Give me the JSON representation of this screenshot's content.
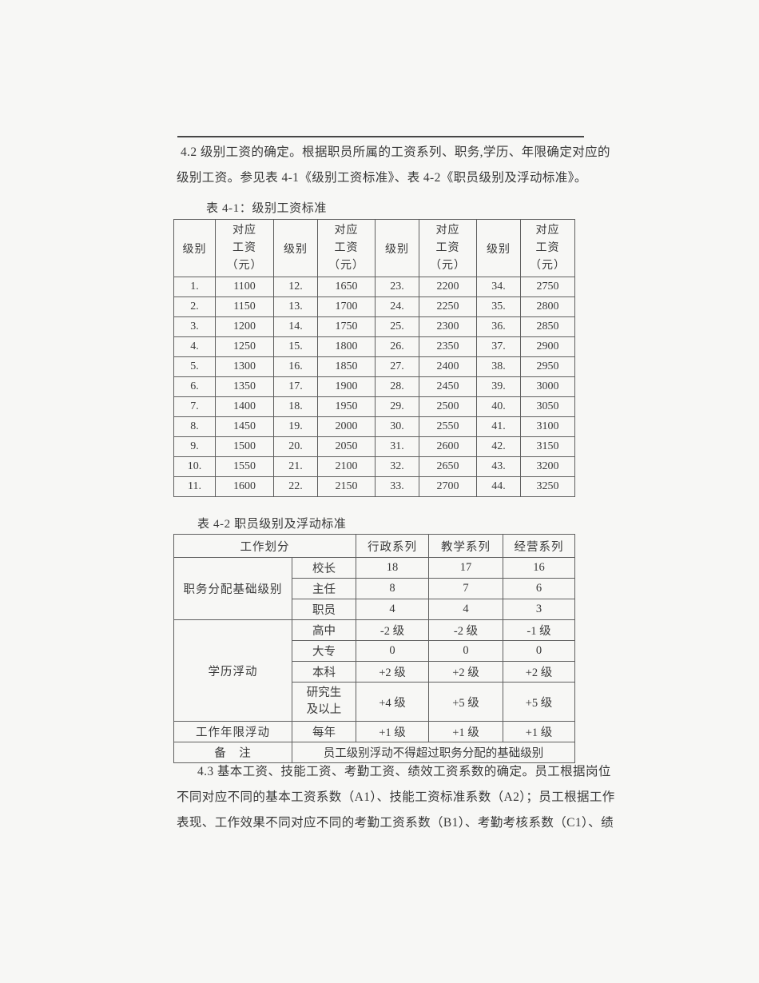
{
  "page": {
    "background_color": "#f7f7f5",
    "text_color": "#383838",
    "table_border_color": "#5f5f5f",
    "rule_color": "#474747"
  },
  "p42": {
    "lines": [
      "4.2 级别工资的确定。根据职员所属的工资系列、职务,学历、年限确定对应的",
      "级别工资。参见表 4-1《级别工资标准》、表 4-2《职员级别及浮动标准》。"
    ]
  },
  "table1": {
    "caption": "表 4-1：级别工资标准",
    "headers": {
      "grade": "级别",
      "salary": "对应\n工资\n（元）"
    },
    "rows": [
      [
        "1.",
        "1100",
        "12.",
        "1650",
        "23.",
        "2200",
        "34.",
        "2750"
      ],
      [
        "2.",
        "1150",
        "13.",
        "1700",
        "24.",
        "2250",
        "35.",
        "2800"
      ],
      [
        "3.",
        "1200",
        "14.",
        "1750",
        "25.",
        "2300",
        "36.",
        "2850"
      ],
      [
        "4.",
        "1250",
        "15.",
        "1800",
        "26.",
        "2350",
        "37.",
        "2900"
      ],
      [
        "5.",
        "1300",
        "16.",
        "1850",
        "27.",
        "2400",
        "38.",
        "2950"
      ],
      [
        "6.",
        "1350",
        "17.",
        "1900",
        "28.",
        "2450",
        "39.",
        "3000"
      ],
      [
        "7.",
        "1400",
        "18.",
        "1950",
        "29.",
        "2500",
        "40.",
        "3050"
      ],
      [
        "8.",
        "1450",
        "19.",
        "2000",
        "30.",
        "2550",
        "41.",
        "3100"
      ],
      [
        "9.",
        "1500",
        "20.",
        "2050",
        "31.",
        "2600",
        "42.",
        "3150"
      ],
      [
        "10.",
        "1550",
        "21.",
        "2100",
        "32.",
        "2650",
        "43.",
        "3200"
      ],
      [
        "11.",
        "1600",
        "22.",
        "2150",
        "33.",
        "2700",
        "44.",
        "3250"
      ]
    ]
  },
  "table2": {
    "caption": "表 4-2 职员级别及浮动标准",
    "headers": {
      "work_division": "工作划分",
      "admin": "行政系列",
      "teaching": "教学系列",
      "business": "经营系列"
    },
    "duty": {
      "label": "职务分配基础级别",
      "rows": [
        {
          "sub": "校长",
          "v": [
            "18",
            "17",
            "16"
          ]
        },
        {
          "sub": "主任",
          "v": [
            "8",
            "7",
            "6"
          ]
        },
        {
          "sub": "职员",
          "v": [
            "4",
            "4",
            "3"
          ]
        }
      ]
    },
    "education": {
      "label": "学历浮动",
      "rows": [
        {
          "sub": "高中",
          "v": [
            "-2 级",
            "-2 级",
            "-1 级"
          ]
        },
        {
          "sub": "大专",
          "v": [
            "0",
            "0",
            "0"
          ]
        },
        {
          "sub": "本科",
          "v": [
            "+2 级",
            "+2 级",
            "+2 级"
          ]
        },
        {
          "sub": "研究生\n及以上",
          "v": [
            "+4 级",
            "+5 级",
            "+5 级"
          ]
        }
      ]
    },
    "seniority": {
      "label": "工作年限浮动",
      "sub": "每年",
      "v": [
        "+1 级",
        "+1 级",
        "+1 级"
      ]
    },
    "remark": {
      "label": "备　注",
      "text": "员工级别浮动不得超过职务分配的基础级别"
    }
  },
  "p43": {
    "lines": [
      "4.3 基本工资、技能工资、考勤工资、绩效工资系数的确定。员工根据岗位",
      "不同对应不同的基本工资系数（A1）、技能工资标准系数（A2）；员工根据工作",
      "表现、工作效果不同对应不同的考勤工资系数（B1）、考勤考核系数（C1）、绩"
    ]
  }
}
